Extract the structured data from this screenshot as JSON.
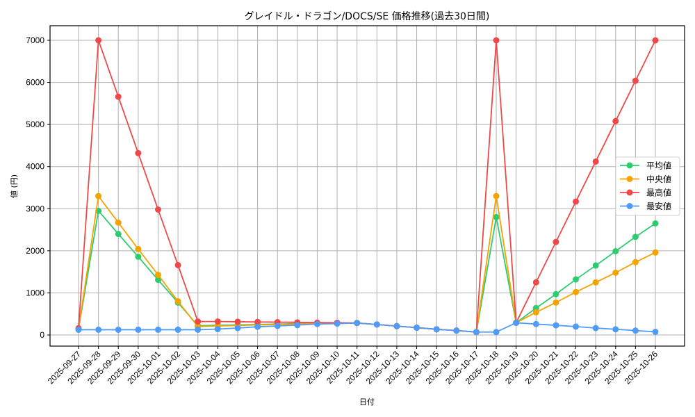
{
  "chart_data": {
    "type": "line",
    "title": "グレイドル・ドラゴン/DOCS/SE 価格推移(過去30日間)",
    "xlabel": "日付",
    "ylabel": "値 (円)",
    "ylim": [
      -250,
      7350
    ],
    "yticks": [
      0,
      1000,
      2000,
      3000,
      4000,
      5000,
      6000,
      7000
    ],
    "grid": true,
    "legend_position": "center right",
    "x": [
      "2025-09-27",
      "2025-09-28",
      "2025-09-29",
      "2025-09-30",
      "2025-10-01",
      "2025-10-02",
      "2025-10-03",
      "2025-10-04",
      "2025-10-05",
      "2025-10-06",
      "2025-10-07",
      "2025-10-08",
      "2025-10-09",
      "2025-10-10",
      "2025-10-11",
      "2025-10-12",
      "2025-10-13",
      "2025-10-14",
      "2025-10-15",
      "2025-10-16",
      "2025-10-17",
      "2025-10-18",
      "2025-10-19",
      "2025-10-20",
      "2025-10-21",
      "2025-10-22",
      "2025-10-23",
      "2025-10-24",
      "2025-10-25",
      "2025-10-26"
    ],
    "series": [
      {
        "name": "平均値",
        "color": "#2ecc71",
        "values": [
          140,
          2950,
          2400,
          1860,
          1310,
          770,
          220,
          230,
          240,
          250,
          260,
          270,
          275,
          280,
          285,
          250,
          210,
          175,
          135,
          105,
          70,
          2800,
          290,
          640,
          970,
          1320,
          1650,
          1990,
          2330,
          2650
        ]
      },
      {
        "name": "中央値",
        "color": "#f5a300",
        "values": [
          140,
          3300,
          2670,
          2040,
          1430,
          800,
          200,
          215,
          225,
          240,
          250,
          260,
          270,
          280,
          285,
          250,
          210,
          175,
          135,
          105,
          70,
          3300,
          290,
          540,
          770,
          1020,
          1250,
          1480,
          1730,
          1960
        ]
      },
      {
        "name": "最高値",
        "color": "#f04848",
        "values": [
          160,
          7000,
          5660,
          4320,
          2980,
          1660,
          320,
          320,
          315,
          310,
          305,
          300,
          295,
          290,
          285,
          250,
          210,
          175,
          135,
          105,
          70,
          7000,
          290,
          1250,
          2210,
          3170,
          4120,
          5080,
          6040,
          7000
        ]
      },
      {
        "name": "最安値",
        "color": "#4f9bf7",
        "values": [
          125,
          125,
          125,
          125,
          125,
          125,
          125,
          140,
          165,
          195,
          215,
          235,
          260,
          270,
          285,
          250,
          210,
          175,
          135,
          105,
          70,
          70,
          290,
          260,
          230,
          200,
          165,
          135,
          105,
          75
        ]
      }
    ]
  }
}
